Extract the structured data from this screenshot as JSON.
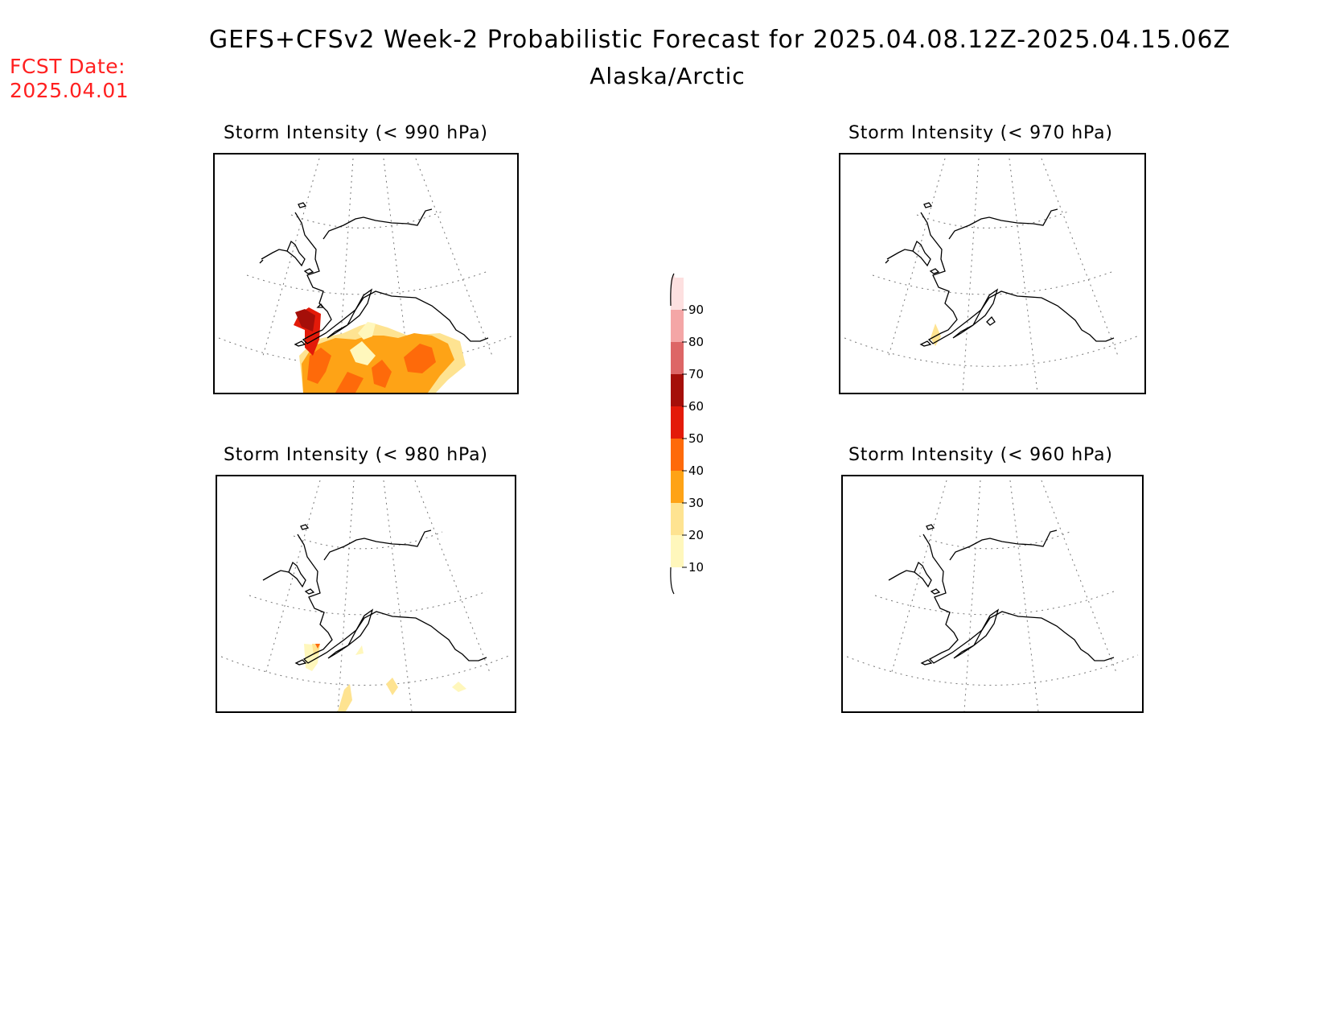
{
  "header": {
    "title": "GEFS+CFSv2 Week-2 Probabilistic Forecast for 2025.04.08.12Z-2025.04.15.06Z",
    "subtitle": "Alaska/Arctic",
    "fcst_label": "FCST Date:",
    "fcst_date": "2025.04.01"
  },
  "panels": [
    {
      "id": "p990",
      "title": "Storm Intensity (< 990 hPa)"
    },
    {
      "id": "p970",
      "title": "Storm Intensity (< 970 hPa)"
    },
    {
      "id": "p980",
      "title": "Storm Intensity (< 980 hPa)"
    },
    {
      "id": "p960",
      "title": "Storm Intensity (< 960 hPa)"
    }
  ],
  "colorbar": {
    "levels": [
      "10",
      "20",
      "30",
      "40",
      "50",
      "60",
      "70",
      "80",
      "90"
    ],
    "colors": [
      "#fff7bc",
      "#fee391",
      "#fea316",
      "#fe6a0a",
      "#e31a09",
      "#a50f09",
      "#dd6666",
      "#f4a6a6",
      "#fde0e0"
    ]
  }
}
